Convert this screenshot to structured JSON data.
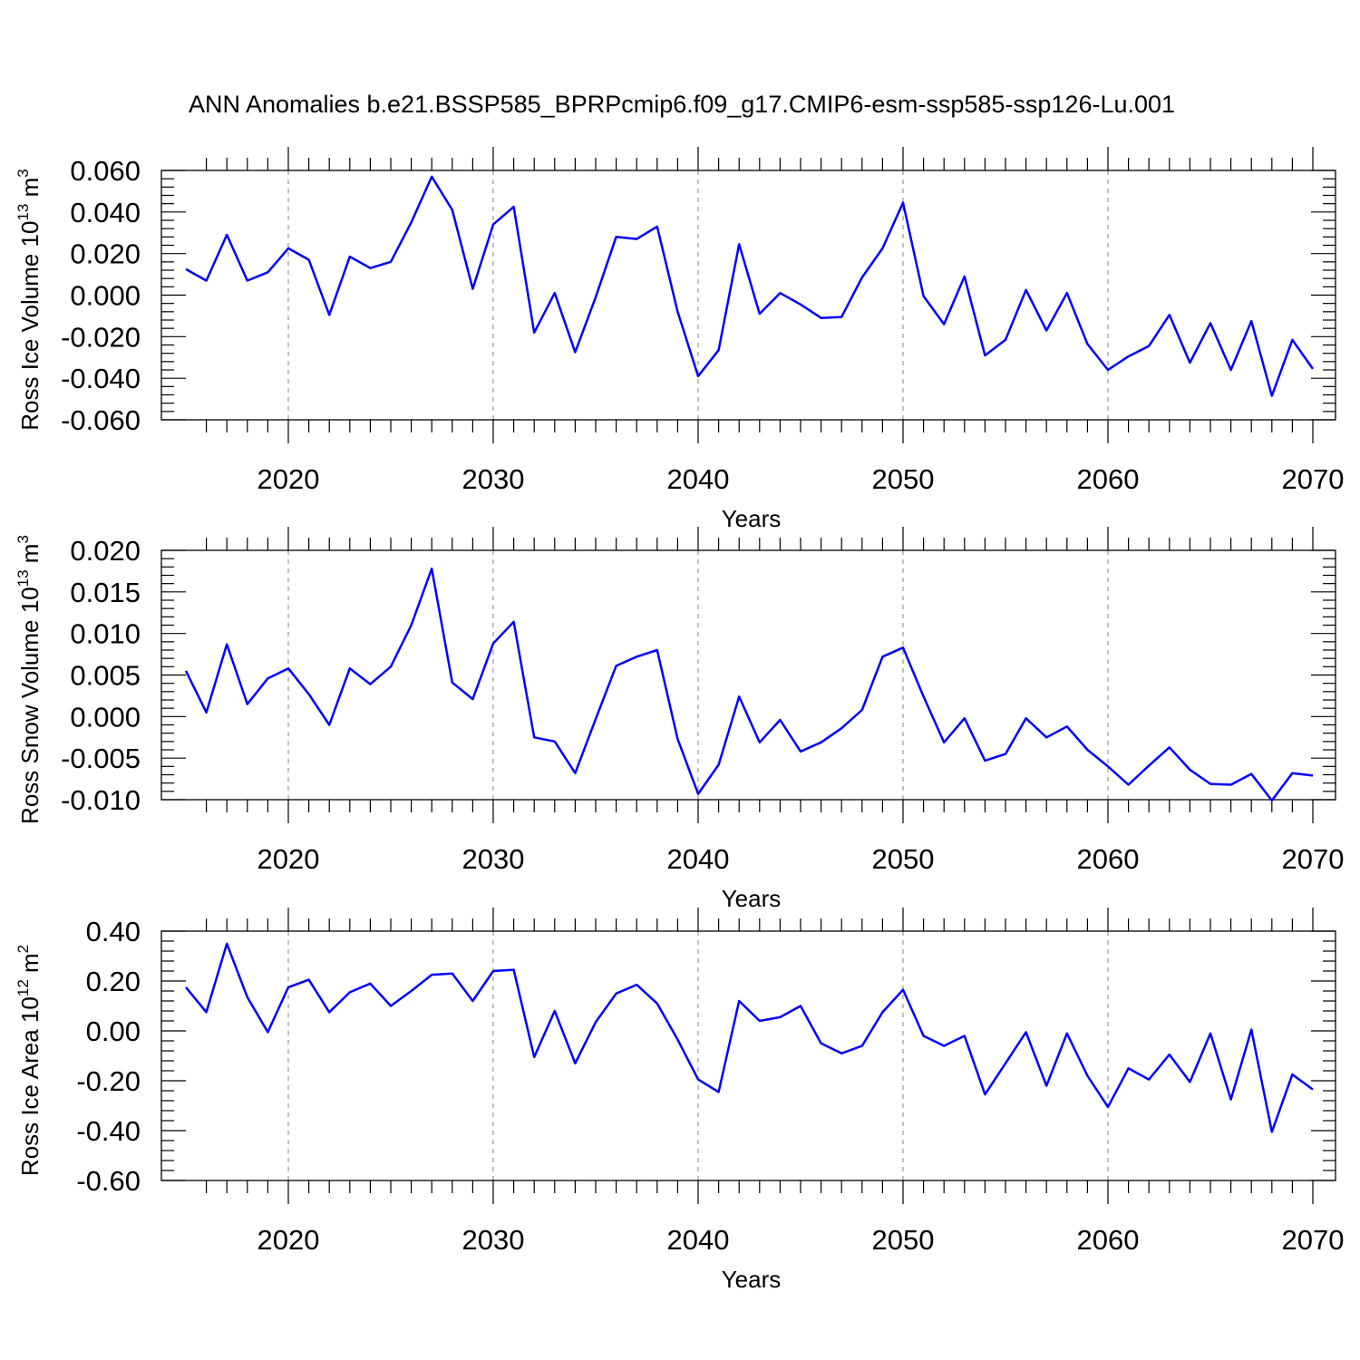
{
  "figure_title": "ANN Anomalies b.e21.BSSP585_BPRPcmip6.f09_g17.CMIP6-esm-ssp585-ssp126-Lu.001",
  "line_color": "#0000ff",
  "chart_data": [
    {
      "type": "line",
      "title": "",
      "xlabel": "Years",
      "ylabel": {
        "text": "Ross Ice Volume 10",
        "sup": "13",
        "text2": " m",
        "sup2": "3"
      },
      "xlim": [
        2015,
        2070
      ],
      "ylim": [
        -0.06,
        0.06
      ],
      "xticks": [
        "2020",
        "2030",
        "2040",
        "2050",
        "2060",
        "2070"
      ],
      "yticks": [
        "0.060",
        "0.040",
        "0.020",
        "0.000",
        "-0.020",
        "-0.040",
        "-0.060"
      ],
      "grid": "dashed vertical lines at labeled x ticks",
      "series": [
        {
          "x": [
            2015,
            2016,
            2017,
            2018,
            2019,
            2020,
            2021,
            2022,
            2023,
            2024,
            2025,
            2026,
            2027,
            2028,
            2029,
            2030,
            2031,
            2032,
            2033,
            2034,
            2035,
            2036,
            2037,
            2038,
            2039,
            2040,
            2041,
            2042,
            2043,
            2044,
            2045,
            2046,
            2047,
            2048,
            2049,
            2050,
            2051,
            2052,
            2053,
            2054,
            2055,
            2056,
            2057,
            2058,
            2059,
            2060,
            2061,
            2062,
            2063,
            2064,
            2065,
            2066,
            2067,
            2068,
            2069,
            2070
          ],
          "values": [
            0.0125,
            0.007,
            0.029,
            0.007,
            0.011,
            0.0225,
            0.017,
            -0.0095,
            0.0185,
            0.013,
            0.016,
            0.035,
            0.057,
            0.041,
            0.003,
            0.034,
            0.0425,
            -0.018,
            0.001,
            -0.0275,
            -0.001,
            0.028,
            0.027,
            0.033,
            -0.008,
            -0.039,
            -0.0265,
            0.0245,
            -0.009,
            0.001,
            -0.0045,
            -0.011,
            -0.0105,
            0.0085,
            0.0225,
            0.0445,
            -0.0005,
            -0.014,
            0.009,
            -0.029,
            -0.0215,
            0.0025,
            -0.017,
            0.001,
            -0.0235,
            -0.036,
            -0.0295,
            -0.0245,
            -0.0095,
            -0.0325,
            -0.0135,
            -0.036,
            -0.0125,
            -0.0485,
            -0.0215,
            -0.0355
          ]
        }
      ]
    },
    {
      "type": "line",
      "title": "",
      "xlabel": "Years",
      "ylabel": {
        "text": "Ross Snow Volume 10",
        "sup": "13",
        "text2": " m",
        "sup2": "3"
      },
      "xlim": [
        2015,
        2070
      ],
      "ylim": [
        -0.01,
        0.02
      ],
      "xticks": [
        "2020",
        "2030",
        "2040",
        "2050",
        "2060",
        "2070"
      ],
      "yticks": [
        "0.020",
        "0.015",
        "0.010",
        "0.005",
        "0.000",
        "-0.005",
        "-0.010"
      ],
      "grid": "dashed vertical lines at labeled x ticks",
      "series": [
        {
          "x": [
            2015,
            2016,
            2017,
            2018,
            2019,
            2020,
            2021,
            2022,
            2023,
            2024,
            2025,
            2026,
            2027,
            2028,
            2029,
            2030,
            2031,
            2032,
            2033,
            2034,
            2035,
            2036,
            2037,
            2038,
            2039,
            2040,
            2041,
            2042,
            2043,
            2044,
            2045,
            2046,
            2047,
            2048,
            2049,
            2050,
            2051,
            2052,
            2053,
            2054,
            2055,
            2056,
            2057,
            2058,
            2059,
            2060,
            2061,
            2062,
            2063,
            2064,
            2065,
            2066,
            2067,
            2068,
            2069,
            2070
          ],
          "values": [
            0.0055,
            0.0005,
            0.0087,
            0.0015,
            0.0046,
            0.0058,
            0.0027,
            -0.001,
            0.0058,
            0.0039,
            0.006,
            0.011,
            0.0178,
            0.0041,
            0.0021,
            0.0088,
            0.0114,
            -0.0025,
            -0.003,
            -0.0068,
            -0.0003,
            0.0061,
            0.0072,
            0.008,
            -0.0027,
            -0.0093,
            -0.0058,
            0.0024,
            -0.0031,
            -0.0004,
            -0.0042,
            -0.0031,
            -0.0014,
            0.0008,
            0.0072,
            0.0083,
            0.0024,
            -0.0031,
            -0.0002,
            -0.0053,
            -0.0045,
            -0.0002,
            -0.0025,
            -0.0012,
            -0.004,
            -0.006,
            -0.0082,
            -0.0059,
            -0.0037,
            -0.0064,
            -0.0081,
            -0.0082,
            -0.0069,
            -0.0101,
            -0.0068,
            -0.0071
          ]
        }
      ]
    },
    {
      "type": "line",
      "title": "",
      "xlabel": "Years",
      "ylabel": {
        "text": "Ross Ice Area 10",
        "sup": "12",
        "text2": " m",
        "sup2": "2"
      },
      "xlim": [
        2015,
        2070
      ],
      "ylim": [
        -0.6,
        0.4
      ],
      "xticks": [
        "2020",
        "2030",
        "2040",
        "2050",
        "2060",
        "2070"
      ],
      "yticks": [
        "0.40",
        "0.20",
        "0.00",
        "-0.20",
        "-0.40",
        "-0.60"
      ],
      "grid": "dashed vertical lines at labeled x ticks",
      "series": [
        {
          "x": [
            2015,
            2016,
            2017,
            2018,
            2019,
            2020,
            2021,
            2022,
            2023,
            2024,
            2025,
            2026,
            2027,
            2028,
            2029,
            2030,
            2031,
            2032,
            2033,
            2034,
            2035,
            2036,
            2037,
            2038,
            2039,
            2040,
            2041,
            2042,
            2043,
            2044,
            2045,
            2046,
            2047,
            2048,
            2049,
            2050,
            2051,
            2052,
            2053,
            2054,
            2055,
            2056,
            2057,
            2058,
            2059,
            2060,
            2061,
            2062,
            2063,
            2064,
            2065,
            2066,
            2067,
            2068,
            2069,
            2070
          ],
          "values": [
            0.175,
            0.075,
            0.35,
            0.135,
            -0.005,
            0.175,
            0.205,
            0.075,
            0.155,
            0.19,
            0.1,
            0.16,
            0.225,
            0.23,
            0.12,
            0.24,
            0.245,
            -0.105,
            0.08,
            -0.13,
            0.035,
            0.15,
            0.185,
            0.11,
            -0.035,
            -0.195,
            -0.245,
            0.12,
            0.04,
            0.055,
            0.1,
            -0.05,
            -0.09,
            -0.06,
            0.075,
            0.165,
            -0.02,
            -0.06,
            -0.02,
            -0.255,
            -0.13,
            -0.005,
            -0.22,
            -0.01,
            -0.18,
            -0.305,
            -0.15,
            -0.195,
            -0.095,
            -0.205,
            -0.01,
            -0.275,
            0.005,
            -0.405,
            -0.175,
            -0.235
          ]
        }
      ]
    }
  ]
}
